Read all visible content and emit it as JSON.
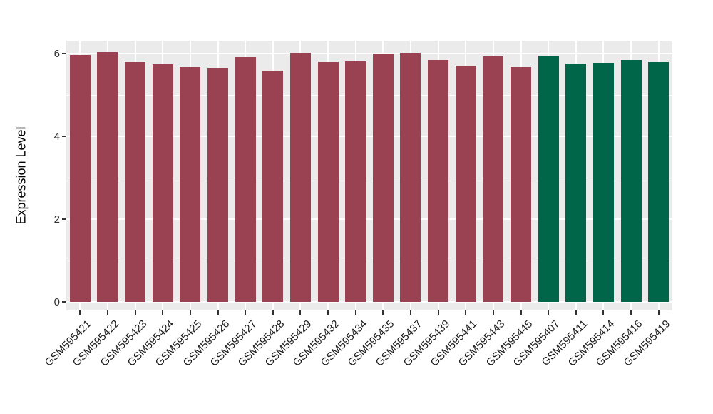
{
  "figure": {
    "panel_background": "#EBEBEB",
    "grid_color": "#FFFFFF",
    "tick_color": "#333333",
    "axis_text_color": "#1a1a1a"
  },
  "chart_data": {
    "type": "bar",
    "title": "",
    "xlabel": "",
    "ylabel": "Expression Level",
    "ylim": [
      -0.2,
      6.3
    ],
    "yticks": [
      0,
      2,
      4,
      6
    ],
    "ytick_labels": [
      "0",
      "2",
      "4",
      "6"
    ],
    "minor_gridlines": [
      1,
      3,
      5
    ],
    "grid": true,
    "legend": false,
    "categories": [
      "GSM595421",
      "GSM595422",
      "GSM595423",
      "GSM595424",
      "GSM595425",
      "GSM595426",
      "GSM595427",
      "GSM595428",
      "GSM595429",
      "GSM595432",
      "GSM595434",
      "GSM595435",
      "GSM595437",
      "GSM595439",
      "GSM595441",
      "GSM595443",
      "GSM595445",
      "GSM595407",
      "GSM595411",
      "GSM595414",
      "GSM595416",
      "GSM595419"
    ],
    "values": [
      5.97,
      6.03,
      5.79,
      5.75,
      5.67,
      5.66,
      5.92,
      5.58,
      6.01,
      5.79,
      5.81,
      6.0,
      6.01,
      5.84,
      5.7,
      5.93,
      5.67,
      5.95,
      5.76,
      5.77,
      5.85,
      5.8
    ],
    "colors": [
      "#9A4152",
      "#9A4152",
      "#9A4152",
      "#9A4152",
      "#9A4152",
      "#9A4152",
      "#9A4152",
      "#9A4152",
      "#9A4152",
      "#9A4152",
      "#9A4152",
      "#9A4152",
      "#9A4152",
      "#9A4152",
      "#9A4152",
      "#9A4152",
      "#9A4152",
      "#006649",
      "#006649",
      "#006649",
      "#006649",
      "#006649"
    ],
    "group_colors": {
      "group1": "#9A4152",
      "group2": "#006649"
    }
  }
}
